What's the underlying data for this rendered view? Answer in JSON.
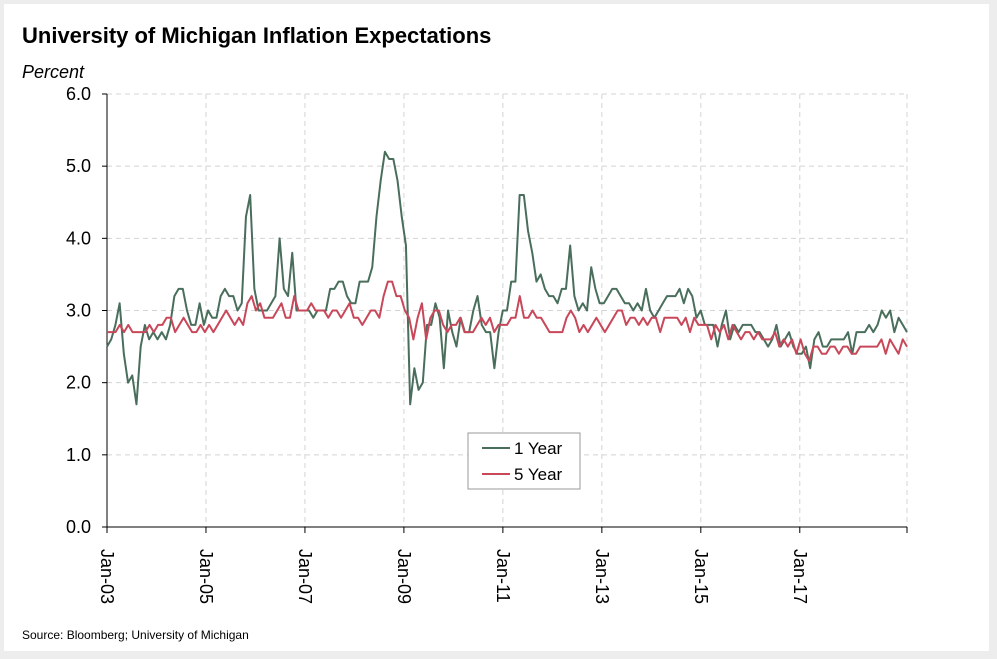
{
  "header": {
    "title": "University of Michigan Inflation Expectations",
    "unit_label": "Percent"
  },
  "footer": {
    "source": "Source: Bloomberg; University of Michigan"
  },
  "chart_data": {
    "type": "line",
    "title": "University of Michigan Inflation Expectations",
    "ylabel": "Percent",
    "xlabel": "",
    "ylim": [
      0,
      6
    ],
    "yticks": [
      "0.0",
      "1.0",
      "2.0",
      "3.0",
      "4.0",
      "5.0",
      "6.0"
    ],
    "xticks": [
      "Jan-03",
      "Jan-05",
      "Jan-07",
      "Jan-09",
      "Jan-11",
      "Jan-13",
      "Jan-15",
      "Jan-17"
    ],
    "x_start": "Jan-03",
    "x_end": "Feb-19",
    "frequency": "monthly",
    "grid": true,
    "legend_position": "bottom-center",
    "series": [
      {
        "name": "1 Year",
        "color": "#4a6e5c",
        "values": [
          2.5,
          2.6,
          2.8,
          3.1,
          2.4,
          2.0,
          2.1,
          1.7,
          2.5,
          2.8,
          2.6,
          2.7,
          2.6,
          2.7,
          2.6,
          2.8,
          3.2,
          3.3,
          3.3,
          3.0,
          2.8,
          2.8,
          3.1,
          2.8,
          3.0,
          2.9,
          2.9,
          3.2,
          3.3,
          3.2,
          3.2,
          3.0,
          3.1,
          4.3,
          4.6,
          3.3,
          3.0,
          3.0,
          3.0,
          3.1,
          3.2,
          4.0,
          3.3,
          3.2,
          3.8,
          3.0,
          3.0,
          3.0,
          3.0,
          2.9,
          3.0,
          3.0,
          3.0,
          3.3,
          3.3,
          3.4,
          3.4,
          3.2,
          3.1,
          3.1,
          3.4,
          3.4,
          3.4,
          3.6,
          4.3,
          4.8,
          5.2,
          5.1,
          5.1,
          4.8,
          4.3,
          3.9,
          1.7,
          2.2,
          1.9,
          2.0,
          2.8,
          2.8,
          3.1,
          2.9,
          2.2,
          3.0,
          2.7,
          2.5,
          2.9,
          2.7,
          2.7,
          3.0,
          3.2,
          2.8,
          2.7,
          2.7,
          2.2,
          2.7,
          3.0,
          3.0,
          3.4,
          3.4,
          4.6,
          4.6,
          4.1,
          3.8,
          3.4,
          3.5,
          3.3,
          3.2,
          3.2,
          3.1,
          3.3,
          3.3,
          3.9,
          3.2,
          3.0,
          3.1,
          3.0,
          3.6,
          3.3,
          3.1,
          3.1,
          3.2,
          3.3,
          3.3,
          3.2,
          3.1,
          3.1,
          3.0,
          3.1,
          3.0,
          3.3,
          3.0,
          2.9,
          3.0,
          3.1,
          3.2,
          3.2,
          3.2,
          3.3,
          3.1,
          3.3,
          3.2,
          2.9,
          3.0,
          2.8,
          2.8,
          2.8,
          2.5,
          2.8,
          3.0,
          2.6,
          2.8,
          2.7,
          2.8,
          2.8,
          2.8,
          2.7,
          2.7,
          2.6,
          2.5,
          2.6,
          2.8,
          2.5,
          2.6,
          2.7,
          2.5,
          2.4,
          2.4,
          2.5,
          2.2,
          2.6,
          2.7,
          2.5,
          2.5,
          2.6,
          2.6,
          2.6,
          2.6,
          2.7,
          2.4,
          2.7,
          2.7,
          2.7,
          2.8,
          2.7,
          2.8,
          3.0,
          2.9,
          3.0,
          2.7,
          2.9,
          2.8,
          2.7
        ]
      },
      {
        "name": "5 Year",
        "color": "#c8485a",
        "values": [
          2.7,
          2.7,
          2.7,
          2.8,
          2.7,
          2.8,
          2.7,
          2.7,
          2.7,
          2.7,
          2.8,
          2.7,
          2.8,
          2.8,
          2.9,
          2.9,
          2.7,
          2.8,
          2.9,
          2.8,
          2.7,
          2.7,
          2.8,
          2.7,
          2.8,
          2.7,
          2.8,
          2.9,
          3.0,
          2.9,
          2.8,
          2.9,
          2.8,
          3.1,
          3.2,
          3.0,
          3.1,
          2.9,
          2.9,
          2.9,
          3.0,
          3.1,
          2.9,
          2.9,
          3.2,
          3.0,
          3.0,
          3.0,
          3.1,
          3.0,
          3.0,
          3.0,
          2.9,
          3.0,
          3.0,
          2.9,
          3.0,
          3.1,
          2.9,
          2.9,
          2.8,
          2.9,
          3.0,
          3.0,
          2.9,
          3.2,
          3.4,
          3.4,
          3.2,
          3.2,
          3.0,
          2.9,
          2.6,
          2.9,
          3.1,
          2.6,
          2.9,
          3.0,
          3.0,
          2.8,
          2.7,
          2.8,
          2.8,
          2.9,
          2.7,
          2.7,
          2.7,
          2.8,
          2.9,
          2.8,
          2.9,
          2.7,
          2.8,
          2.8,
          2.8,
          2.9,
          2.9,
          3.2,
          2.9,
          2.9,
          3.0,
          2.9,
          2.9,
          2.8,
          2.7,
          2.7,
          2.7,
          2.7,
          2.9,
          3.0,
          2.9,
          2.7,
          2.8,
          2.7,
          2.8,
          2.9,
          2.8,
          2.7,
          2.8,
          2.9,
          3.0,
          3.0,
          2.8,
          2.9,
          2.9,
          2.8,
          2.9,
          2.8,
          2.9,
          2.9,
          2.7,
          2.9,
          2.9,
          2.9,
          2.9,
          2.8,
          2.9,
          2.7,
          2.9,
          2.8,
          2.8,
          2.8,
          2.6,
          2.8,
          2.7,
          2.8,
          2.6,
          2.8,
          2.7,
          2.6,
          2.7,
          2.7,
          2.6,
          2.7,
          2.6,
          2.6,
          2.6,
          2.7,
          2.5,
          2.6,
          2.5,
          2.6,
          2.4,
          2.6,
          2.4,
          2.3,
          2.5,
          2.5,
          2.4,
          2.4,
          2.5,
          2.5,
          2.4,
          2.5,
          2.5,
          2.4,
          2.4,
          2.5,
          2.5,
          2.5,
          2.5,
          2.5,
          2.6,
          2.4,
          2.6,
          2.5,
          2.4,
          2.6,
          2.5
        ]
      }
    ]
  }
}
